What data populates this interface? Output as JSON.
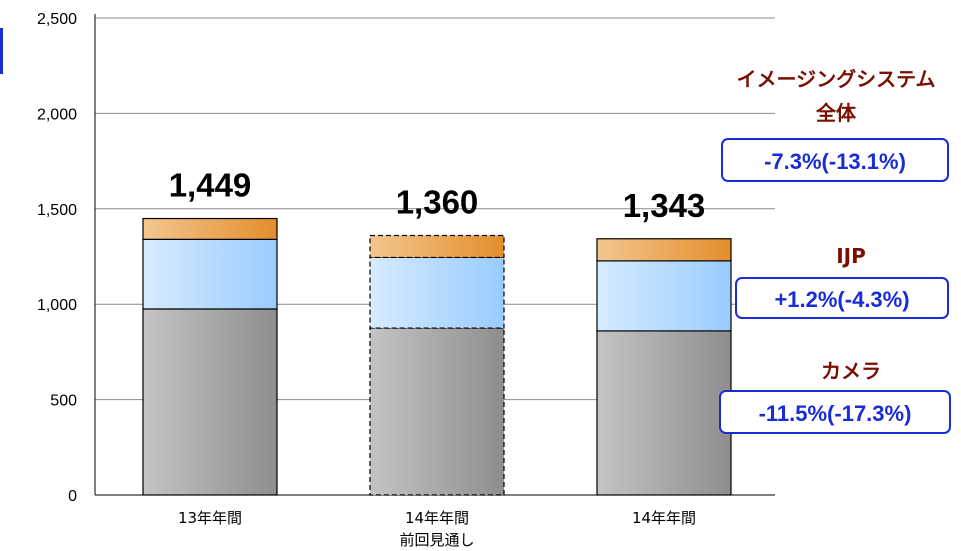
{
  "chart_data": {
    "type": "bar",
    "stacked": true,
    "categories": [
      {
        "line1": "13年年間",
        "line2": ""
      },
      {
        "line1": "14年年間",
        "line2": "前回見通し"
      },
      {
        "line1": "14年年間",
        "line2": ""
      }
    ],
    "series": [
      {
        "values": [
          975,
          875,
          860
        ],
        "colors": {
          "light": "#c4c4c4",
          "dark": "#8e8e8e"
        }
      },
      {
        "values": [
          365,
          370,
          367
        ],
        "colors": {
          "light": "#d6ebff",
          "dark": "#99ccff"
        }
      },
      {
        "values": [
          109,
          115,
          116
        ],
        "colors": {
          "light": "#f3c68f",
          "dark": "#e38e2c"
        }
      }
    ],
    "totals": [
      "1,449",
      "1,360",
      "1,343"
    ],
    "dashed_category_index": 1,
    "yticks": [
      "0",
      "500",
      "1,000",
      "1,500",
      "2,000",
      "2,500"
    ],
    "ylim": [
      0,
      2500
    ],
    "grid": true,
    "annotations": {
      "total": {
        "label_line1": "イメージングシステム",
        "label_line2": "全体",
        "value": "-7.3%(-13.1%)"
      },
      "ijp": {
        "label": "IJP",
        "value": "+1.2%(-4.3%)"
      },
      "camera": {
        "label": "カメラ",
        "value": "-11.5%(-17.3%)"
      }
    },
    "accent_color": "#1a2bd8"
  }
}
